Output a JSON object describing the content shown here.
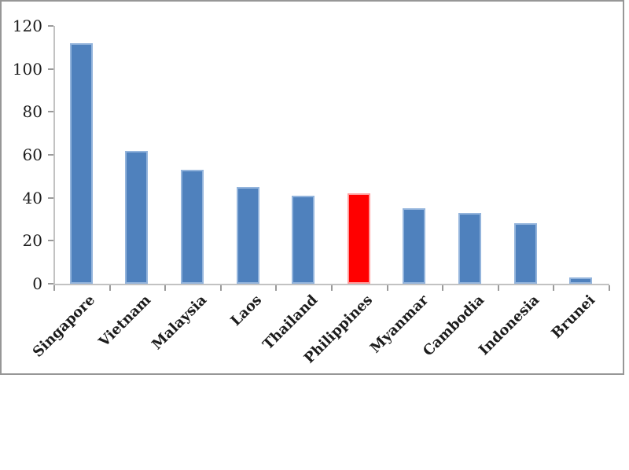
{
  "figure": {
    "background": "#FFFFFF",
    "frame_border_color": "#979797"
  },
  "chart_data": {
    "type": "bar",
    "title": "",
    "xlabel": "",
    "ylabel": "",
    "categories": [
      "Singapore",
      "Vietnam",
      "Malaysia",
      "Laos",
      "Thailand",
      "Philippines",
      "Myanmar",
      "Cambodia",
      "Indonesia",
      "Brunei"
    ],
    "values": [
      112,
      62,
      53,
      45,
      41,
      42,
      35,
      33,
      28,
      3
    ],
    "bar_colors": [
      "#4F81BD",
      "#4F81BD",
      "#4F81BD",
      "#4F81BD",
      "#4F81BD",
      "#FF0000",
      "#4F81BD",
      "#4F81BD",
      "#4F81BD",
      "#4F81BD"
    ],
    "bar_edge_colors": [
      "#93B4DC",
      "#93B4DC",
      "#93B4DC",
      "#93B4DC",
      "#93B4DC",
      "#FF9D9D",
      "#93B4DC",
      "#93B4DC",
      "#93B4DC",
      "#93B4DC"
    ],
    "highlighted_category": "Philippines",
    "highlight_color": "#FF0000",
    "default_bar_color": "#4F81BD",
    "y_ticks": [
      0,
      20,
      40,
      60,
      80,
      100,
      120
    ],
    "ylim": [
      0,
      120
    ],
    "grid": false,
    "legend": false,
    "axis_color": "#C2C2C2",
    "tick_color": "#9A9A9A",
    "text_color": "#1C1C1C"
  }
}
